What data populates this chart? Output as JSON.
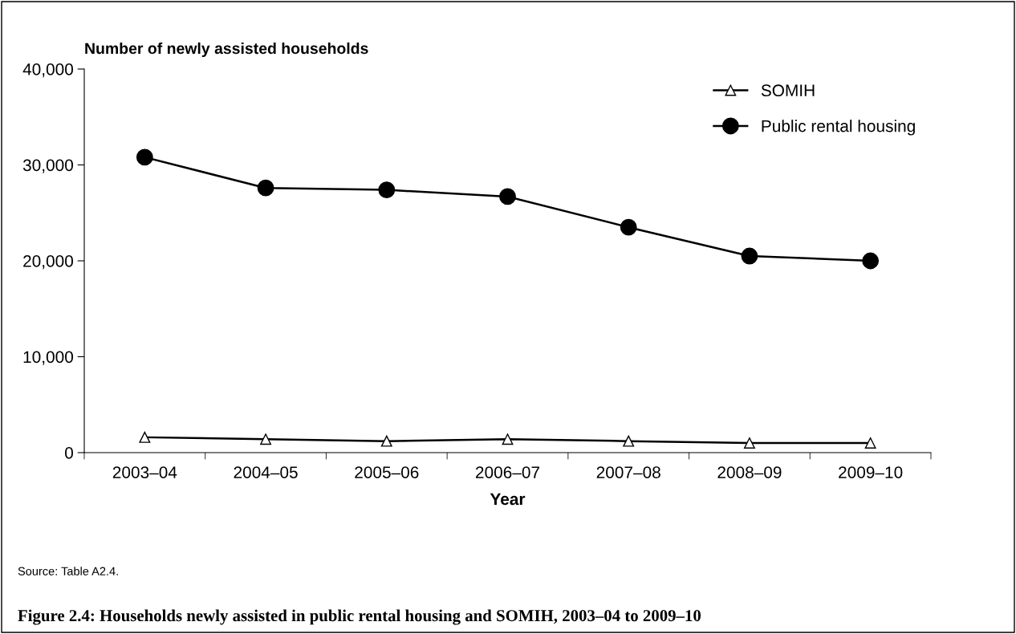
{
  "chart_data": {
    "type": "line",
    "title": "Figure 2.4: Households newly assisted in public rental housing and SOMIH, 2003–04 to 2009–10",
    "ylabel": "Number of newly assisted households",
    "xlabel": "Year",
    "annotations": [
      "Source: Table A2.4."
    ],
    "categories": [
      "2003–04",
      "2004–05",
      "2005–06",
      "2006–07",
      "2007–08",
      "2008–09",
      "2009–10"
    ],
    "series": [
      {
        "name": "SOMIH",
        "color": "#000000",
        "marker": "triangle",
        "values": [
          1600,
          1400,
          1200,
          1400,
          1200,
          1000,
          1000
        ]
      },
      {
        "name": "Public rental housing",
        "color": "#000000",
        "marker": "circle",
        "values": [
          30800,
          27600,
          27400,
          26700,
          23500,
          20500,
          20000
        ]
      }
    ],
    "ylim": [
      0,
      40000
    ],
    "yticks": [
      {
        "value": 0,
        "label": "0"
      },
      {
        "value": 10000,
        "label": "10,000"
      },
      {
        "value": 20000,
        "label": "20,000"
      },
      {
        "value": 30000,
        "label": "30,000"
      },
      {
        "value": 40000,
        "label": "40,000"
      }
    ],
    "grid": false,
    "legend": "top right",
    "line_style": "solid"
  }
}
